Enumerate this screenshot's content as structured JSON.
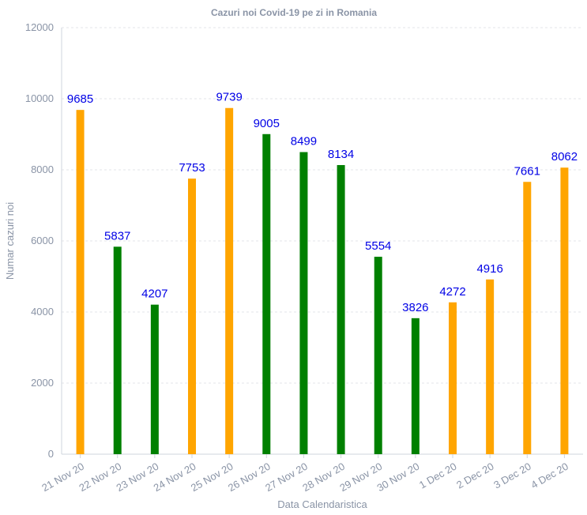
{
  "chart_data": {
    "type": "bar",
    "title": "Cazuri noi Covid-19 pe zi in Romania",
    "xlabel": "Data Calendaristica",
    "ylabel": "Numar cazuri noi",
    "ylim": [
      0,
      12000
    ],
    "yticks": [
      0,
      2000,
      4000,
      6000,
      8000,
      10000,
      12000
    ],
    "grid": true,
    "categories": [
      "21 Nov 20",
      "22 Nov 20",
      "23 Nov 20",
      "24 Nov 20",
      "25 Nov 20",
      "26 Nov 20",
      "27 Nov 20",
      "28 Nov 20",
      "29 Nov 20",
      "30 Nov 20",
      "1 Dec 20",
      "2 Dec 20",
      "3 Dec 20",
      "4 Dec 20"
    ],
    "values": [
      9685,
      5837,
      4207,
      7753,
      9739,
      9005,
      8499,
      8134,
      5554,
      3826,
      4272,
      4916,
      7661,
      8062
    ],
    "bar_colors": [
      "#ffa500",
      "#008000",
      "#008000",
      "#ffa500",
      "#ffa500",
      "#008000",
      "#008000",
      "#008000",
      "#008000",
      "#008000",
      "#ffa500",
      "#ffa500",
      "#ffa500",
      "#ffa500"
    ],
    "label_color": "#0000e6"
  }
}
